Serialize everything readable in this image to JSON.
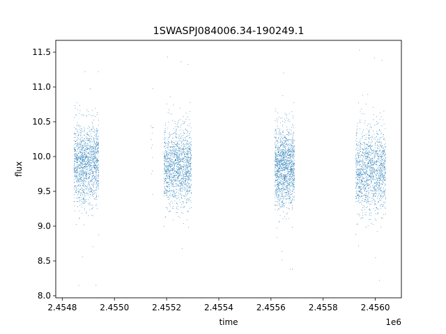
{
  "chart_data": {
    "type": "scatter",
    "title": "1SWASPJ084006.34-190249.1",
    "xlabel": "time",
    "ylabel": "flux",
    "x_offset_label": "1e6",
    "xlim": [
      2454775,
      2456100
    ],
    "ylim": [
      7.97,
      11.67
    ],
    "x_ticks": [
      2454800,
      2455000,
      2455200,
      2455400,
      2455600,
      2455800,
      2456000
    ],
    "x_tick_labels": [
      "2.4548",
      "2.4550",
      "2.4552",
      "2.4554",
      "2.4556",
      "2.4558",
      "2.4560"
    ],
    "y_ticks": [
      8.0,
      8.5,
      9.0,
      9.5,
      10.0,
      10.5,
      11.0,
      11.5
    ],
    "y_tick_labels": [
      "8.0",
      "8.5",
      "9.0",
      "9.5",
      "10.0",
      "10.5",
      "11.0",
      "11.5"
    ],
    "marker_color": "#1f77b4",
    "grid": false,
    "observing_seasons": [
      {
        "time_range": [
          2454845,
          2454940
        ],
        "flux_center": 9.9,
        "flux_spread": 0.28,
        "flux_min": 8.15,
        "flux_max": 11.22
      },
      {
        "time_range": [
          2455140,
          2455150
        ],
        "flux_center": 10.3,
        "flux_spread": 0.35,
        "flux_min": 8.95,
        "flux_max": 11.05
      },
      {
        "time_range": [
          2455190,
          2455295
        ],
        "flux_center": 9.85,
        "flux_spread": 0.28,
        "flux_min": 8.2,
        "flux_max": 11.43
      },
      {
        "time_range": [
          2455615,
          2455690
        ],
        "flux_center": 9.85,
        "flux_spread": 0.28,
        "flux_min": 8.38,
        "flux_max": 11.2
      },
      {
        "time_range": [
          2455925,
          2456040
        ],
        "flux_center": 9.8,
        "flux_spread": 0.3,
        "flux_min": 8.22,
        "flux_max": 11.53
      }
    ]
  }
}
